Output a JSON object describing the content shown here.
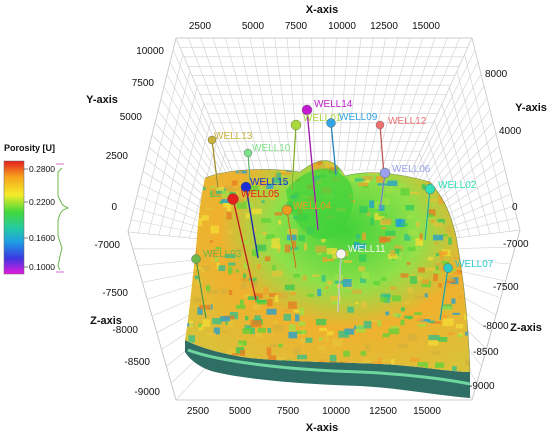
{
  "axes": {
    "x_title_top": "X-axis",
    "x_title_bottom": "X-axis",
    "y_title_left": "Y-axis",
    "y_title_right": "Y-axis",
    "z_title_left": "Z-axis",
    "z_title_right": "Z-axis",
    "x_ticks_top": [
      "2500",
      "5000",
      "7500",
      "10000",
      "12500",
      "15000"
    ],
    "x_ticks_bottom": [
      "2500",
      "5000",
      "7500",
      "10000",
      "12500",
      "15000"
    ],
    "y_ticks_left": [
      "10000",
      "7500",
      "5000",
      "2500",
      "0"
    ],
    "y_ticks_right": [
      "8000",
      "4000",
      "0"
    ],
    "z_ticks_left": [
      "-7000",
      "-7500",
      "-8000",
      "-8500",
      "-9000"
    ],
    "z_ticks_right": [
      "-7000",
      "-7500",
      "-8000",
      "-8500",
      "-9000"
    ]
  },
  "legend": {
    "title": "Porosity [U]",
    "ticks": [
      "0.2800",
      "0.2200",
      "0.1600",
      "0.1000"
    ]
  },
  "wells": [
    {
      "name": "WELL14",
      "color": "#c21bd0"
    },
    {
      "name": "WELL01",
      "color": "#a8d83a"
    },
    {
      "name": "WELL09",
      "color": "#31a4e6"
    },
    {
      "name": "WELL12",
      "color": "#ee7070"
    },
    {
      "name": "WELL13",
      "color": "#c8b43c"
    },
    {
      "name": "WELL10",
      "color": "#7ee08a"
    },
    {
      "name": "WELL15",
      "color": "#1a2fd6"
    },
    {
      "name": "WELL05",
      "color": "#e3201b"
    },
    {
      "name": "WELL04",
      "color": "#ee9b22"
    },
    {
      "name": "WELL06",
      "color": "#9aa0ec"
    },
    {
      "name": "WELL02",
      "color": "#2fe0b4"
    },
    {
      "name": "WELL03",
      "color": "#6cb84a"
    },
    {
      "name": "WELL11",
      "color": "#f5f5f0"
    },
    {
      "name": "WELL07",
      "color": "#2ec8c8"
    }
  ]
}
